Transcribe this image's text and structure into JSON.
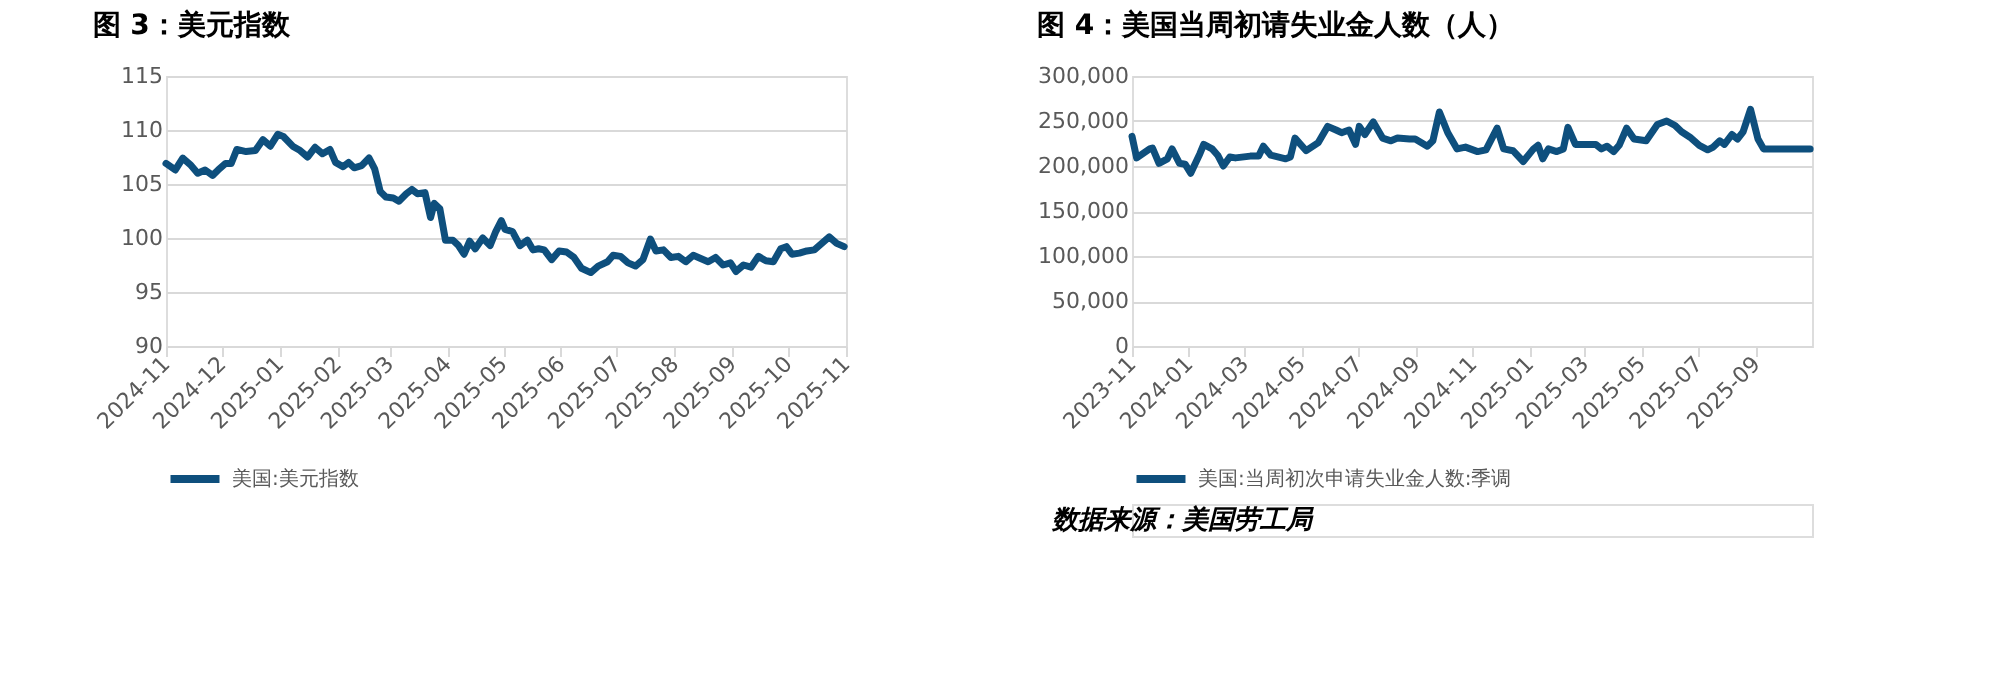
{
  "chart_data": [
    {
      "type": "line",
      "title": "图 3：美元指数",
      "x": [
        "2024-11-01",
        "2024-11-06",
        "2024-11-10",
        "2024-11-14",
        "2024-11-18",
        "2024-11-22",
        "2024-11-26",
        "2024-11-29",
        "2024-12-03",
        "2024-12-06",
        "2024-12-09",
        "2024-12-14",
        "2024-12-19",
        "2024-12-23",
        "2024-12-27",
        "2024-12-31",
        "2025-01-03",
        "2025-01-08",
        "2025-01-12",
        "2025-01-16",
        "2025-01-20",
        "2025-01-24",
        "2025-01-28",
        "2025-01-31",
        "2025-02-04",
        "2025-02-07",
        "2025-02-10",
        "2025-02-14",
        "2025-02-18",
        "2025-02-21",
        "2025-02-24",
        "2025-02-27",
        "2025-03-03",
        "2025-03-06",
        "2025-03-10",
        "2025-03-13",
        "2025-03-16",
        "2025-03-20",
        "2025-03-23",
        "2025-03-25",
        "2025-03-28",
        "2025-03-31",
        "2025-04-04",
        "2025-04-07",
        "2025-04-10",
        "2025-04-13",
        "2025-04-16",
        "2025-04-20",
        "2025-04-24",
        "2025-04-27",
        "2025-04-30",
        "2025-05-02",
        "2025-05-06",
        "2025-05-10",
        "2025-05-14",
        "2025-05-17",
        "2025-05-20",
        "2025-05-23",
        "2025-05-27",
        "2025-05-31",
        "2025-06-04",
        "2025-06-08",
        "2025-06-12",
        "2025-06-17",
        "2025-06-21",
        "2025-06-26",
        "2025-06-29",
        "2025-07-03",
        "2025-07-07",
        "2025-07-11",
        "2025-07-15",
        "2025-07-19",
        "2025-07-22",
        "2025-07-26",
        "2025-07-30",
        "2025-08-03",
        "2025-08-07",
        "2025-08-11",
        "2025-08-15",
        "2025-08-19",
        "2025-08-23",
        "2025-08-27",
        "2025-08-31",
        "2025-09-03",
        "2025-09-07",
        "2025-09-11",
        "2025-09-15",
        "2025-09-19",
        "2025-09-23",
        "2025-09-27",
        "2025-09-30",
        "2025-10-03",
        "2025-10-07",
        "2025-10-11",
        "2025-10-15",
        "2025-10-19",
        "2025-10-23",
        "2025-10-27",
        "2025-10-31"
      ],
      "series": [
        {
          "name": "美国:美元指数",
          "color": "#0e4f7d",
          "values": [
            106.9,
            106.3,
            107.4,
            106.8,
            106.0,
            106.3,
            105.8,
            106.3,
            106.9,
            106.9,
            108.2,
            108.0,
            108.1,
            109.1,
            108.5,
            109.6,
            109.4,
            108.5,
            108.1,
            107.5,
            108.4,
            107.8,
            108.2,
            107.0,
            106.6,
            107.0,
            106.5,
            106.7,
            107.4,
            106.4,
            104.3,
            103.8,
            103.7,
            103.4,
            104.1,
            104.5,
            104.1,
            104.2,
            101.9,
            103.2,
            102.7,
            99.8,
            99.8,
            99.3,
            98.5,
            99.7,
            99.0,
            100.0,
            99.3,
            100.6,
            101.6,
            100.8,
            100.6,
            99.3,
            99.8,
            98.9,
            99.0,
            98.9,
            98.0,
            98.8,
            98.7,
            98.2,
            97.2,
            96.8,
            97.4,
            97.8,
            98.4,
            98.3,
            97.7,
            97.4,
            98.0,
            99.9,
            98.8,
            98.9,
            98.2,
            98.3,
            97.8,
            98.4,
            98.1,
            97.8,
            98.2,
            97.5,
            97.7,
            96.9,
            97.5,
            97.3,
            98.3,
            97.9,
            97.8,
            99.0,
            99.2,
            98.5,
            98.6,
            98.8,
            98.9,
            99.5,
            100.1,
            99.5,
            99.2
          ]
        }
      ],
      "xlim": [
        "2024-11-01",
        "2025-11-01"
      ],
      "xticks": [
        "2024-11",
        "2024-12",
        "2025-01",
        "2025-02",
        "2025-03",
        "2025-04",
        "2025-05",
        "2025-06",
        "2025-07",
        "2025-08",
        "2025-09",
        "2025-10",
        "2025-11"
      ],
      "ylim": [
        90,
        115
      ],
      "yticks": [
        90,
        95,
        100,
        105,
        110,
        115
      ],
      "grid": "y",
      "legend": "bottom",
      "marker": "none",
      "line_style": "solid"
    },
    {
      "type": "line",
      "title": "图 4：美国当周初请失业金人数（人）",
      "x": [
        "2023-11-01",
        "2023-11-06",
        "2023-11-20",
        "2023-11-23",
        "2023-11-30",
        "2023-12-09",
        "2023-12-14",
        "2023-12-22",
        "2023-12-28",
        "2024-01-03",
        "2024-01-13",
        "2024-01-17",
        "2024-01-26",
        "2024-02-01",
        "2024-02-07",
        "2024-02-14",
        "2024-02-20",
        "2024-03-07",
        "2024-03-16",
        "2024-03-21",
        "2024-03-29",
        "2024-04-14",
        "2024-04-19",
        "2024-04-24",
        "2024-05-06",
        "2024-05-19",
        "2024-05-29",
        "2024-06-07",
        "2024-06-13",
        "2024-06-21",
        "2024-06-28",
        "2024-07-02",
        "2024-07-08",
        "2024-07-17",
        "2024-07-27",
        "2024-08-05",
        "2024-08-12",
        "2024-08-25",
        "2024-08-31",
        "2024-09-13",
        "2024-09-19",
        "2024-09-26",
        "2024-10-05",
        "2024-10-15",
        "2024-10-24",
        "2024-11-06",
        "2024-11-15",
        "2024-11-27",
        "2024-12-04",
        "2024-12-14",
        "2024-12-25",
        "2025-01-05",
        "2025-01-10",
        "2025-01-15",
        "2025-01-21",
        "2025-01-30",
        "2025-02-06",
        "2025-02-11",
        "2025-02-19",
        "2025-03-13",
        "2025-03-19",
        "2025-03-25",
        "2025-04-01",
        "2025-04-07",
        "2025-04-15",
        "2025-04-23",
        "2025-05-06",
        "2025-05-18",
        "2025-05-28",
        "2025-06-06",
        "2025-06-13",
        "2025-06-22",
        "2025-07-02",
        "2025-07-11",
        "2025-07-17",
        "2025-07-24",
        "2025-07-29",
        "2025-08-06",
        "2025-08-12",
        "2025-08-18",
        "2025-08-26",
        "2025-09-03",
        "2025-09-09",
        "2025-10-29"
      ],
      "series": [
        {
          "name": "美国:当周初次申请失业金人数:季调",
          "color": "#0e4f7d",
          "values": [
            233000,
            209000,
            219000,
            220000,
            203000,
            208000,
            219000,
            203000,
            202000,
            192000,
            214000,
            224000,
            219000,
            212000,
            200000,
            210000,
            209000,
            211000,
            211000,
            222000,
            212000,
            208000,
            210000,
            231000,
            217000,
            226000,
            244000,
            240000,
            237000,
            240000,
            224000,
            244000,
            235000,
            249000,
            231000,
            228000,
            231000,
            230000,
            230000,
            222000,
            228000,
            260000,
            237000,
            219000,
            221000,
            216000,
            218000,
            242000,
            219000,
            217000,
            205000,
            219000,
            223000,
            208000,
            219000,
            216000,
            219000,
            243000,
            224000,
            224000,
            219000,
            222000,
            216000,
            223000,
            242000,
            230000,
            228000,
            246000,
            250000,
            245000,
            238000,
            232000,
            223000,
            218000,
            221000,
            228000,
            224000,
            235000,
            230000,
            238000,
            263000,
            230000,
            219000,
            219000
          ]
        }
      ],
      "xlim": [
        "2023-11-01",
        "2025-10-31"
      ],
      "xticks": [
        "2023-11",
        "2024-01",
        "2024-03",
        "2024-05",
        "2024-07",
        "2024-09",
        "2024-11",
        "2025-01",
        "2025-03",
        "2025-05",
        "2025-07",
        "2025-09"
      ],
      "ylim": [
        0,
        300000
      ],
      "yticks": [
        0,
        {
          "value": 50000,
          "label": "50,000"
        },
        {
          "value": 100000,
          "label": "100,000"
        },
        {
          "value": 150000,
          "label": "150,000"
        },
        {
          "value": 200000,
          "label": "200,000"
        },
        {
          "value": 250000,
          "label": "250,000"
        },
        {
          "value": 300000,
          "label": "300,000"
        }
      ],
      "grid": "y",
      "legend": "bottom",
      "marker": "none",
      "line_style": "solid",
      "annotations": [
        "数据来源：美国劳工局"
      ]
    }
  ]
}
